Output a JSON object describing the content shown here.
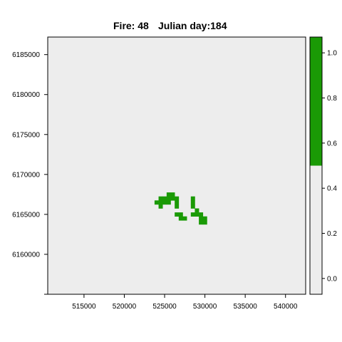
{
  "chart_data": {
    "type": "heatmap",
    "title_fire": "Fire: 48",
    "title_day": "Julian day:184",
    "x_ticks": [
      "515000",
      "520000",
      "525000",
      "530000",
      "535000",
      "540000"
    ],
    "y_ticks": [
      "6160000",
      "6165000",
      "6170000",
      "6175000",
      "6180000",
      "6185000"
    ],
    "legend_ticks": [
      "0.0",
      "0.2",
      "0.4",
      "0.6",
      "0.8",
      "1.0"
    ],
    "xlim": [
      510500,
      542500
    ],
    "ylim": [
      6155000,
      6187200
    ],
    "legend_range": [
      -0.07,
      1.07
    ],
    "background_value": 0,
    "background_color": "#ededed",
    "burn_color": "#1a9a05",
    "cell_size": 500,
    "burned_cells": [
      [
        524000,
        6166500
      ],
      [
        524500,
        6166500
      ],
      [
        525000,
        6166500
      ],
      [
        525500,
        6166500
      ],
      [
        526500,
        6166500
      ],
      [
        524500,
        6167000
      ],
      [
        525000,
        6167000
      ],
      [
        525500,
        6167000
      ],
      [
        526000,
        6167000
      ],
      [
        526500,
        6167000
      ],
      [
        525500,
        6167500
      ],
      [
        526000,
        6167500
      ],
      [
        524500,
        6166000
      ],
      [
        526500,
        6166000
      ],
      [
        526500,
        6165000
      ],
      [
        527000,
        6165000
      ],
      [
        527000,
        6164500
      ],
      [
        527500,
        6164500
      ],
      [
        528500,
        6167000
      ],
      [
        528500,
        6166500
      ],
      [
        528500,
        6166000
      ],
      [
        528500,
        6165000
      ],
      [
        529000,
        6165000
      ],
      [
        529000,
        6165500
      ],
      [
        529500,
        6165000
      ],
      [
        529500,
        6164500
      ],
      [
        530000,
        6164500
      ],
      [
        529500,
        6164000
      ],
      [
        530000,
        6164000
      ]
    ]
  }
}
